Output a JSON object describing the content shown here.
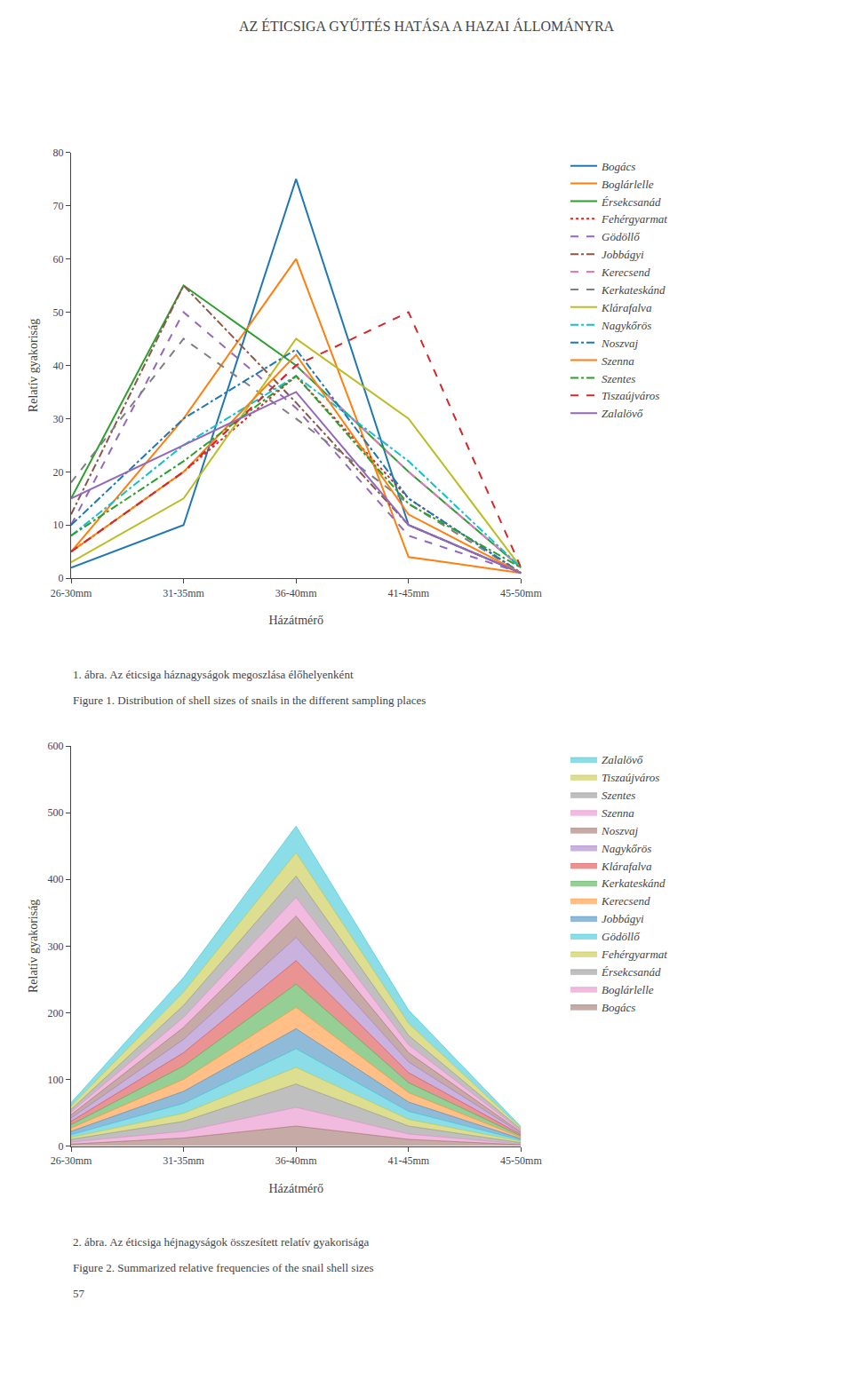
{
  "chart_data": [
    {
      "type": "line",
      "title": "AZ ÉTICSIGA GYŰJTÉS HATÁSA A HAZAI ÁLLOMÁNYRA",
      "categories": [
        "26-30mm",
        "31-35mm",
        "36-40mm",
        "41-45mm",
        "45-50mm"
      ],
      "xlabel": "Házátmérő",
      "ylabel": "Relatív gyakoriság",
      "ylim": [
        0,
        80
      ],
      "yticks": [
        0,
        10,
        20,
        30,
        40,
        50,
        60,
        70,
        80
      ],
      "grid": false,
      "legend": "right",
      "annotations": [
        "1. ábra. Az éticsiga háznagyságok megoszlása élőhelyenként",
        "Figure 1. Distribution of shell sizes of snails in the different sampling places"
      ],
      "series": [
        {
          "name": "Bogács",
          "values": [
            2,
            10,
            75,
            10,
            1
          ],
          "line_style": "solid"
        },
        {
          "name": "Boglárlelle",
          "values": [
            5,
            30,
            60,
            4,
            1
          ],
          "line_style": "solid"
        },
        {
          "name": "Érsekcsanád",
          "values": [
            15,
            55,
            40,
            20,
            2
          ],
          "line_style": "solid"
        },
        {
          "name": "Fehérgyarmat",
          "values": [
            5,
            20,
            38,
            15,
            1
          ],
          "line_style": "dot"
        },
        {
          "name": "Gödöllő",
          "values": [
            10,
            50,
            32,
            8,
            1
          ],
          "line_style": "dash"
        },
        {
          "name": "Jobbágyi",
          "values": [
            12,
            55,
            33,
            10,
            1
          ],
          "line_style": "dashdot"
        },
        {
          "name": "Kerecsend",
          "values": [
            5,
            20,
            40,
            20,
            2
          ],
          "line_style": "dash"
        },
        {
          "name": "Kerkateskánd",
          "values": [
            18,
            45,
            30,
            14,
            1
          ],
          "line_style": "dash"
        },
        {
          "name": "Klárafalva",
          "values": [
            3,
            15,
            45,
            30,
            2
          ],
          "line_style": "solid"
        },
        {
          "name": "Nagykőrös",
          "values": [
            8,
            25,
            38,
            22,
            2
          ],
          "line_style": "dashdot"
        },
        {
          "name": "Noszvaj",
          "values": [
            10,
            30,
            43,
            15,
            1
          ],
          "line_style": "dashdot"
        },
        {
          "name": "Szenna",
          "values": [
            5,
            20,
            42,
            12,
            1
          ],
          "line_style": "solid"
        },
        {
          "name": "Szentes",
          "values": [
            8,
            22,
            38,
            14,
            2
          ],
          "line_style": "dashdot"
        },
        {
          "name": "Tiszaújváros",
          "values": [
            5,
            20,
            40,
            50,
            2
          ],
          "line_style": "dash"
        },
        {
          "name": "Zalalövő",
          "values": [
            15,
            25,
            35,
            10,
            1
          ],
          "line_style": "solid"
        }
      ]
    },
    {
      "type": "area",
      "stacked": true,
      "categories": [
        "26-30mm",
        "31-35mm",
        "36-40mm",
        "41-45mm",
        "45-50mm"
      ],
      "xlabel": "Házátmérő",
      "ylabel": "Relatív gyakoriság",
      "ylim": [
        0,
        600
      ],
      "yticks": [
        0,
        100,
        200,
        300,
        400,
        500,
        600
      ],
      "grid": false,
      "legend": "right",
      "annotations": [
        "2. ábra. Az éticsiga héjnagyságok összesített relatív gyakorisága",
        "Figure 2. Summarized relative frequencies of the snail shell sizes",
        "57"
      ],
      "series": [
        {
          "name": "Bogács",
          "values": [
            3,
            12,
            30,
            10,
            2
          ]
        },
        {
          "name": "Boglárlelle",
          "values": [
            3,
            10,
            28,
            8,
            1
          ]
        },
        {
          "name": "Érsekcsanád",
          "values": [
            4,
            15,
            35,
            12,
            2
          ]
        },
        {
          "name": "Fehérgyarmat",
          "values": [
            3,
            12,
            25,
            10,
            2
          ]
        },
        {
          "name": "Gödöllő",
          "values": [
            4,
            15,
            28,
            12,
            2
          ]
        },
        {
          "name": "Jobbágyi",
          "values": [
            5,
            18,
            30,
            14,
            2
          ]
        },
        {
          "name": "Kerecsend",
          "values": [
            5,
            18,
            32,
            14,
            2
          ]
        },
        {
          "name": "Kerkateskánd",
          "values": [
            5,
            20,
            35,
            15,
            2
          ]
        },
        {
          "name": "Klárafalva",
          "values": [
            5,
            20,
            35,
            15,
            2
          ]
        },
        {
          "name": "Nagykőrös",
          "values": [
            5,
            20,
            35,
            16,
            2
          ]
        },
        {
          "name": "Noszvaj",
          "values": [
            5,
            18,
            32,
            14,
            2
          ]
        },
        {
          "name": "Szenna",
          "values": [
            4,
            15,
            28,
            12,
            2
          ]
        },
        {
          "name": "Szentes",
          "values": [
            4,
            18,
            32,
            14,
            2
          ]
        },
        {
          "name": "Tiszaújváros",
          "values": [
            5,
            20,
            35,
            18,
            2
          ]
        },
        {
          "name": "Zalalövő",
          "values": [
            5,
            22,
            40,
            20,
            2
          ]
        }
      ]
    }
  ]
}
